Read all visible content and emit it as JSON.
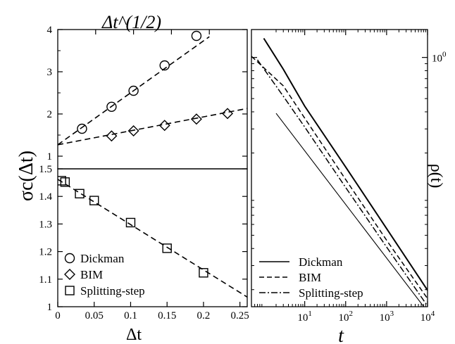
{
  "chart_data": [
    {
      "panel": "top-left",
      "type": "scatter",
      "title": "",
      "xlabel": "Δt^(1/2)",
      "ylabel": "σc(Δt)",
      "xlim": [
        0,
        0.25
      ],
      "ylim": [
        0.7,
        4.0
      ],
      "yticks": [
        "1",
        "2",
        "3",
        "4"
      ],
      "xaxis_position": "top",
      "series": [
        {
          "name": "Dickman",
          "marker": "circle",
          "x": [
            0.032,
            0.071,
            0.1,
            0.141,
            0.183
          ],
          "y": [
            1.65,
            2.17,
            2.55,
            3.15,
            3.85
          ],
          "fit": {
            "x": [
              0,
              0.2
            ],
            "y": [
              1.27,
              3.83
            ]
          }
        },
        {
          "name": "BIM",
          "marker": "diamond",
          "x": [
            0.071,
            0.1,
            0.141,
            0.183,
            0.224
          ],
          "y": [
            1.48,
            1.6,
            1.73,
            1.88,
            2.01
          ],
          "fit": {
            "x": [
              0,
              0.25
            ],
            "y": [
              1.27,
              2.13
            ]
          }
        }
      ]
    },
    {
      "panel": "bottom-left",
      "type": "scatter",
      "title": "",
      "xlabel": "Δt",
      "ylabel": "σc(Δt)",
      "xlim": [
        0,
        0.26
      ],
      "ylim": [
        1.0,
        1.5
      ],
      "xticks": [
        "0",
        "0.05",
        "0.1",
        "0.15",
        "0.2",
        "0.25"
      ],
      "yticks": [
        "1",
        "1.1",
        "1.2",
        "1.3",
        "1.4",
        "1.5"
      ],
      "series": [
        {
          "name": "Splitting-step",
          "marker": "square",
          "x": [
            0.005,
            0.01,
            0.03,
            0.05,
            0.1,
            0.15,
            0.2
          ],
          "y": [
            1.457,
            1.452,
            1.41,
            1.385,
            1.305,
            1.212,
            1.123
          ],
          "fit": {
            "x": [
              0,
              0.26
            ],
            "y": [
              1.462,
              1.035
            ]
          }
        }
      ],
      "legend": {
        "placement": "bottom-left",
        "entries": [
          "Dickman",
          "BIM",
          "Splitting-step"
        ]
      }
    },
    {
      "panel": "right",
      "type": "line",
      "title": "",
      "xlabel": "t",
      "ylabel": "ρ(t)",
      "xscale": "log",
      "yscale": "log",
      "xlim": [
        0.5,
        10000
      ],
      "ylim": [
        0.015,
        1.6
      ],
      "xticks": [
        "10^1",
        "10^2",
        "10^3",
        "10^4"
      ],
      "yticks": [
        "10^0"
      ],
      "yaxis_position": "right",
      "series": [
        {
          "name": "Dickman",
          "style": "solid",
          "x": [
            1.0,
            3,
            10,
            100,
            1000,
            10000
          ],
          "y": [
            1.38,
            0.82,
            0.44,
            0.158,
            0.056,
            0.0198
          ]
        },
        {
          "name": "BIM",
          "style": "dashed",
          "x": [
            0.5,
            3,
            10,
            100,
            1000,
            10000
          ],
          "y": [
            1.02,
            0.62,
            0.36,
            0.128,
            0.046,
            0.0172
          ]
        },
        {
          "name": "Splitting-step",
          "style": "dashdot",
          "x": [
            0.7,
            3,
            10,
            100,
            1000,
            10000
          ],
          "y": [
            0.96,
            0.52,
            0.31,
            0.112,
            0.041,
            0.0152
          ]
        },
        {
          "name": "",
          "style": "solid-thin",
          "x": [
            2,
            10000
          ],
          "y": [
            0.39,
            0.0138
          ]
        }
      ],
      "legend": {
        "placement": "bottom-left",
        "entries": [
          "Dickman",
          "BIM",
          "Splitting-step"
        ]
      }
    }
  ]
}
